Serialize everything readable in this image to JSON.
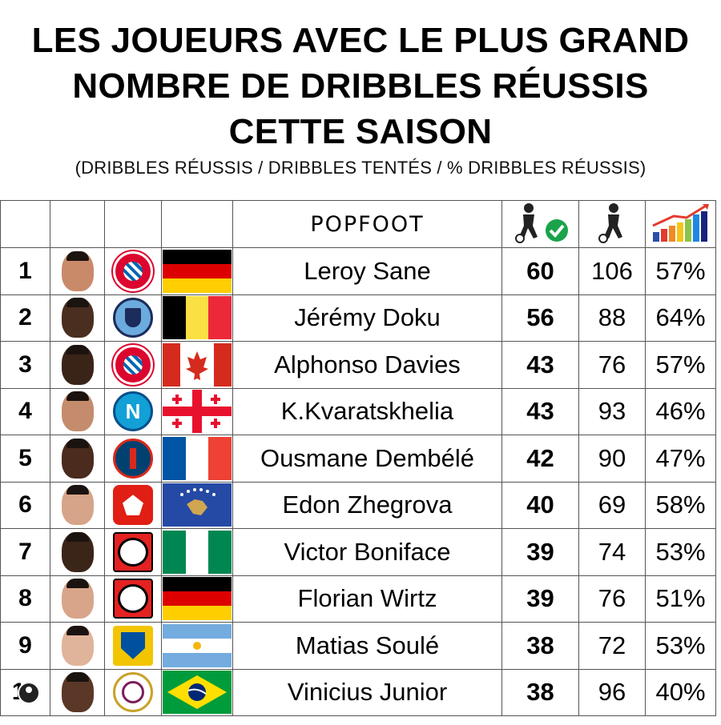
{
  "title": {
    "line1": "LES JOUEURS AVEC LE PLUS GRAND",
    "line2": "NOMBRE DE DRIBBLES RÉUSSIS",
    "line3": "CETTE SAISON",
    "subtitle": "(DRIBBLES RÉUSSIS / DRIBBLES TENTÉS / % DRIBBLES RÉUSSIS)"
  },
  "brand": "POPFOOT",
  "icons": {
    "successful_dribbles": "player-dribble-check-icon",
    "attempted_dribbles": "player-dribble-icon",
    "percentage": "bar-chart-growth-icon"
  },
  "players": [
    {
      "rank": "1",
      "name": "Leroy Sane",
      "successful": "60",
      "attempted": "106",
      "pct": "57%",
      "club": "FC Bayern München",
      "country": "Germany"
    },
    {
      "rank": "2",
      "name": "Jérémy Doku",
      "successful": "56",
      "attempted": "88",
      "pct": "64%",
      "club": "Manchester City",
      "country": "Belgium"
    },
    {
      "rank": "3",
      "name": "Alphonso Davies",
      "successful": "43",
      "attempted": "76",
      "pct": "57%",
      "club": "FC Bayern München",
      "country": "Canada"
    },
    {
      "rank": "4",
      "name": "K.Kvaratskhelia",
      "successful": "43",
      "attempted": "93",
      "pct": "46%",
      "club": "Napoli",
      "country": "Georgia"
    },
    {
      "rank": "5",
      "name": "Ousmane Dembélé",
      "successful": "42",
      "attempted": "90",
      "pct": "47%",
      "club": "Paris Saint-Germain",
      "country": "France"
    },
    {
      "rank": "6",
      "name": "Edon Zhegrova",
      "successful": "40",
      "attempted": "69",
      "pct": "58%",
      "club": "LOSC",
      "country": "Kosovo"
    },
    {
      "rank": "7",
      "name": "Victor Boniface",
      "successful": "39",
      "attempted": "74",
      "pct": "53%",
      "club": "Bayer Leverkusen",
      "country": "Nigeria"
    },
    {
      "rank": "8",
      "name": "Florian Wirtz",
      "successful": "39",
      "attempted": "76",
      "pct": "51%",
      "club": "Bayer Leverkusen",
      "country": "Germany"
    },
    {
      "rank": "9",
      "name": "Matias Soulé",
      "successful": "38",
      "attempted": "72",
      "pct": "53%",
      "club": "Frosinone Calcio",
      "country": "Argentina"
    },
    {
      "rank": "10",
      "name": "Vinicius Junior",
      "successful": "38",
      "attempted": "96",
      "pct": "40%",
      "club": "Real Madrid",
      "country": "Brazil"
    }
  ],
  "colors": {
    "border": "#555555",
    "check_green": "#1aa34a"
  }
}
